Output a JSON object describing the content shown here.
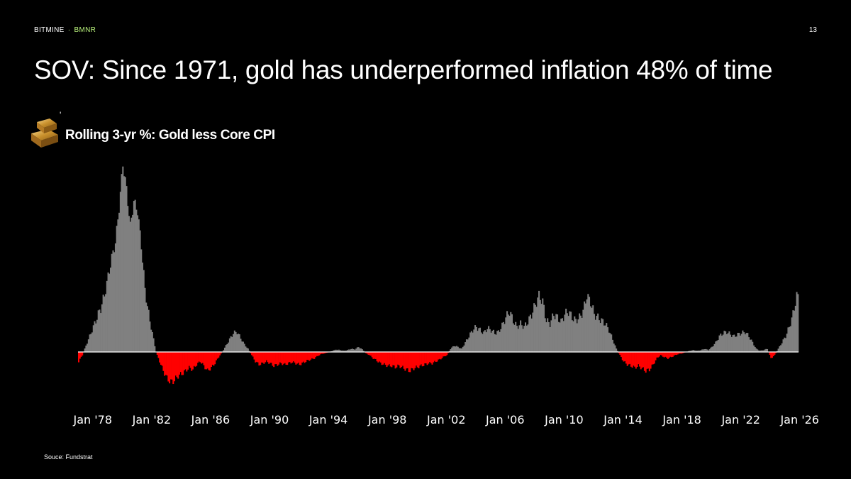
{
  "header": {
    "brand": "BITMINE",
    "separator": "·",
    "ticker": "BMNR",
    "page_number": "13"
  },
  "slide": {
    "title": "SOV: Since 1971, gold has underperformed inflation 48% of time",
    "tick_mark": "'",
    "source": "Souce: Fundstrat"
  },
  "icons": {
    "gold": "gold-bars-icon"
  },
  "colors": {
    "background": "#000000",
    "positive": "#808080",
    "negative": "#ff0000",
    "baseline": "#ffffff",
    "ticker": "#b9f27c"
  },
  "chart_data": {
    "type": "bar",
    "title": "Rolling 3-yr %: Gold less Core CPI",
    "xlabel": "",
    "ylabel": "",
    "x_tick_labels": [
      "Jan '78",
      "Jan '82",
      "Jan '86",
      "Jan '90",
      "Jan '94",
      "Jan '98",
      "Jan '02",
      "Jan '06",
      "Jan '10",
      "Jan '14",
      "Jan '18",
      "Jan '22",
      "Jan '26"
    ],
    "x_range": [
      "1977-01",
      "2025-12"
    ],
    "ylim": [
      -50,
      300
    ],
    "grid": false,
    "legend": "none",
    "series": [
      {
        "values": [
          {
            "date": "1977-01",
            "value": -15
          },
          {
            "date": "1977-04",
            "value": -5
          },
          {
            "date": "1977-07",
            "value": 10
          },
          {
            "date": "1977-10",
            "value": 25
          },
          {
            "date": "1978-01",
            "value": 40
          },
          {
            "date": "1978-04",
            "value": 55
          },
          {
            "date": "1978-07",
            "value": 70
          },
          {
            "date": "1978-10",
            "value": 90
          },
          {
            "date": "1979-01",
            "value": 120
          },
          {
            "date": "1979-04",
            "value": 150
          },
          {
            "date": "1979-07",
            "value": 175
          },
          {
            "date": "1979-10",
            "value": 230
          },
          {
            "date": "1980-01",
            "value": 300
          },
          {
            "date": "1980-04",
            "value": 260
          },
          {
            "date": "1980-07",
            "value": 200
          },
          {
            "date": "1980-10",
            "value": 240
          },
          {
            "date": "1981-01",
            "value": 225
          },
          {
            "date": "1981-04",
            "value": 170
          },
          {
            "date": "1981-07",
            "value": 100
          },
          {
            "date": "1981-10",
            "value": 60
          },
          {
            "date": "1982-01",
            "value": 30
          },
          {
            "date": "1982-04",
            "value": 0
          },
          {
            "date": "1982-07",
            "value": -15
          },
          {
            "date": "1982-10",
            "value": -30
          },
          {
            "date": "1983-01",
            "value": -42
          },
          {
            "date": "1983-04",
            "value": -48
          },
          {
            "date": "1983-07",
            "value": -45
          },
          {
            "date": "1983-10",
            "value": -38
          },
          {
            "date": "1984-01",
            "value": -35
          },
          {
            "date": "1984-04",
            "value": -30
          },
          {
            "date": "1984-07",
            "value": -25
          },
          {
            "date": "1984-10",
            "value": -28
          },
          {
            "date": "1985-01",
            "value": -20
          },
          {
            "date": "1985-04",
            "value": -15
          },
          {
            "date": "1985-07",
            "value": -22
          },
          {
            "date": "1985-10",
            "value": -30
          },
          {
            "date": "1986-01",
            "value": -25
          },
          {
            "date": "1986-04",
            "value": -18
          },
          {
            "date": "1986-07",
            "value": -8
          },
          {
            "date": "1986-10",
            "value": 0
          },
          {
            "date": "1987-01",
            "value": 10
          },
          {
            "date": "1987-04",
            "value": 20
          },
          {
            "date": "1987-07",
            "value": 30
          },
          {
            "date": "1987-10",
            "value": 32
          },
          {
            "date": "1988-01",
            "value": 22
          },
          {
            "date": "1988-04",
            "value": 12
          },
          {
            "date": "1988-07",
            "value": 5
          },
          {
            "date": "1988-10",
            "value": -5
          },
          {
            "date": "1989-01",
            "value": -15
          },
          {
            "date": "1989-04",
            "value": -20
          },
          {
            "date": "1989-07",
            "value": -18
          },
          {
            "date": "1989-10",
            "value": -15
          },
          {
            "date": "1990-01",
            "value": -18
          },
          {
            "date": "1990-04",
            "value": -22
          },
          {
            "date": "1990-07",
            "value": -20
          },
          {
            "date": "1990-10",
            "value": -18
          },
          {
            "date": "1991-01",
            "value": -20
          },
          {
            "date": "1991-04",
            "value": -18
          },
          {
            "date": "1991-07",
            "value": -16
          },
          {
            "date": "1991-10",
            "value": -18
          },
          {
            "date": "1992-01",
            "value": -20
          },
          {
            "date": "1992-04",
            "value": -17
          },
          {
            "date": "1992-07",
            "value": -14
          },
          {
            "date": "1992-10",
            "value": -12
          },
          {
            "date": "1993-01",
            "value": -10
          },
          {
            "date": "1993-04",
            "value": -6
          },
          {
            "date": "1993-07",
            "value": -3
          },
          {
            "date": "1993-10",
            "value": -2
          },
          {
            "date": "1994-01",
            "value": 0
          },
          {
            "date": "1994-04",
            "value": 2
          },
          {
            "date": "1994-07",
            "value": 4
          },
          {
            "date": "1994-10",
            "value": 3
          },
          {
            "date": "1995-01",
            "value": 2
          },
          {
            "date": "1995-04",
            "value": 3
          },
          {
            "date": "1995-07",
            "value": 5
          },
          {
            "date": "1995-10",
            "value": 4
          },
          {
            "date": "1996-01",
            "value": 8
          },
          {
            "date": "1996-04",
            "value": 4
          },
          {
            "date": "1996-07",
            "value": -2
          },
          {
            "date": "1996-10",
            "value": -5
          },
          {
            "date": "1997-01",
            "value": -10
          },
          {
            "date": "1997-04",
            "value": -14
          },
          {
            "date": "1997-07",
            "value": -18
          },
          {
            "date": "1997-10",
            "value": -20
          },
          {
            "date": "1998-01",
            "value": -22
          },
          {
            "date": "1998-04",
            "value": -22
          },
          {
            "date": "1998-07",
            "value": -24
          },
          {
            "date": "1998-10",
            "value": -22
          },
          {
            "date": "1999-01",
            "value": -25
          },
          {
            "date": "1999-04",
            "value": -28
          },
          {
            "date": "1999-07",
            "value": -30
          },
          {
            "date": "1999-10",
            "value": -26
          },
          {
            "date": "2000-01",
            "value": -24
          },
          {
            "date": "2000-04",
            "value": -22
          },
          {
            "date": "2000-07",
            "value": -20
          },
          {
            "date": "2000-10",
            "value": -18
          },
          {
            "date": "2001-01",
            "value": -18
          },
          {
            "date": "2001-04",
            "value": -15
          },
          {
            "date": "2001-07",
            "value": -12
          },
          {
            "date": "2001-10",
            "value": -8
          },
          {
            "date": "2002-01",
            "value": -5
          },
          {
            "date": "2002-04",
            "value": 5
          },
          {
            "date": "2002-07",
            "value": 10
          },
          {
            "date": "2002-10",
            "value": 8
          },
          {
            "date": "2003-01",
            "value": 5
          },
          {
            "date": "2003-04",
            "value": 15
          },
          {
            "date": "2003-07",
            "value": 25
          },
          {
            "date": "2003-10",
            "value": 35
          },
          {
            "date": "2004-01",
            "value": 40
          },
          {
            "date": "2004-04",
            "value": 35
          },
          {
            "date": "2004-07",
            "value": 30
          },
          {
            "date": "2004-10",
            "value": 38
          },
          {
            "date": "2005-01",
            "value": 35
          },
          {
            "date": "2005-04",
            "value": 30
          },
          {
            "date": "2005-07",
            "value": 32
          },
          {
            "date": "2005-10",
            "value": 42
          },
          {
            "date": "2006-01",
            "value": 55
          },
          {
            "date": "2006-04",
            "value": 65
          },
          {
            "date": "2006-07",
            "value": 50
          },
          {
            "date": "2006-10",
            "value": 40
          },
          {
            "date": "2007-01",
            "value": 45
          },
          {
            "date": "2007-04",
            "value": 40
          },
          {
            "date": "2007-07",
            "value": 48
          },
          {
            "date": "2007-10",
            "value": 60
          },
          {
            "date": "2008-01",
            "value": 75
          },
          {
            "date": "2008-04",
            "value": 90
          },
          {
            "date": "2008-07",
            "value": 80
          },
          {
            "date": "2008-10",
            "value": 50
          },
          {
            "date": "2009-01",
            "value": 45
          },
          {
            "date": "2009-04",
            "value": 60
          },
          {
            "date": "2009-07",
            "value": 55
          },
          {
            "date": "2009-10",
            "value": 48
          },
          {
            "date": "2010-01",
            "value": 60
          },
          {
            "date": "2010-04",
            "value": 65
          },
          {
            "date": "2010-07",
            "value": 55
          },
          {
            "date": "2010-10",
            "value": 50
          },
          {
            "date": "2011-01",
            "value": 55
          },
          {
            "date": "2011-04",
            "value": 65
          },
          {
            "date": "2011-07",
            "value": 90
          },
          {
            "date": "2011-10",
            "value": 80
          },
          {
            "date": "2012-01",
            "value": 60
          },
          {
            "date": "2012-04",
            "value": 55
          },
          {
            "date": "2012-07",
            "value": 50
          },
          {
            "date": "2012-10",
            "value": 45
          },
          {
            "date": "2013-01",
            "value": 35
          },
          {
            "date": "2013-04",
            "value": 20
          },
          {
            "date": "2013-07",
            "value": 5
          },
          {
            "date": "2013-10",
            "value": -5
          },
          {
            "date": "2014-01",
            "value": -15
          },
          {
            "date": "2014-04",
            "value": -20
          },
          {
            "date": "2014-07",
            "value": -22
          },
          {
            "date": "2014-10",
            "value": -25
          },
          {
            "date": "2015-01",
            "value": -22
          },
          {
            "date": "2015-04",
            "value": -26
          },
          {
            "date": "2015-07",
            "value": -30
          },
          {
            "date": "2015-10",
            "value": -28
          },
          {
            "date": "2016-01",
            "value": -20
          },
          {
            "date": "2016-04",
            "value": -10
          },
          {
            "date": "2016-07",
            "value": -5
          },
          {
            "date": "2016-10",
            "value": -8
          },
          {
            "date": "2017-01",
            "value": -10
          },
          {
            "date": "2017-04",
            "value": -8
          },
          {
            "date": "2017-07",
            "value": -5
          },
          {
            "date": "2017-10",
            "value": -3
          },
          {
            "date": "2018-01",
            "value": -2
          },
          {
            "date": "2018-04",
            "value": 0
          },
          {
            "date": "2018-07",
            "value": 2
          },
          {
            "date": "2018-10",
            "value": 3
          },
          {
            "date": "2019-01",
            "value": 2
          },
          {
            "date": "2019-04",
            "value": 3
          },
          {
            "date": "2019-07",
            "value": 5
          },
          {
            "date": "2019-10",
            "value": 3
          },
          {
            "date": "2020-01",
            "value": 8
          },
          {
            "date": "2020-04",
            "value": 15
          },
          {
            "date": "2020-07",
            "value": 25
          },
          {
            "date": "2020-10",
            "value": 30
          },
          {
            "date": "2021-01",
            "value": 32
          },
          {
            "date": "2021-04",
            "value": 28
          },
          {
            "date": "2021-07",
            "value": 25
          },
          {
            "date": "2021-10",
            "value": 28
          },
          {
            "date": "2022-01",
            "value": 30
          },
          {
            "date": "2022-04",
            "value": 32
          },
          {
            "date": "2022-07",
            "value": 25
          },
          {
            "date": "2022-10",
            "value": 15
          },
          {
            "date": "2023-01",
            "value": 5
          },
          {
            "date": "2023-04",
            "value": 2
          },
          {
            "date": "2023-07",
            "value": 3
          },
          {
            "date": "2023-10",
            "value": 5
          },
          {
            "date": "2024-01",
            "value": -10
          },
          {
            "date": "2024-04",
            "value": -5
          },
          {
            "date": "2024-07",
            "value": 5
          },
          {
            "date": "2024-10",
            "value": 15
          },
          {
            "date": "2025-01",
            "value": 25
          },
          {
            "date": "2025-04",
            "value": 40
          },
          {
            "date": "2025-07",
            "value": 60
          },
          {
            "date": "2025-10",
            "value": 90
          },
          {
            "date": "2025-12",
            "value": 85
          }
        ]
      }
    ]
  }
}
